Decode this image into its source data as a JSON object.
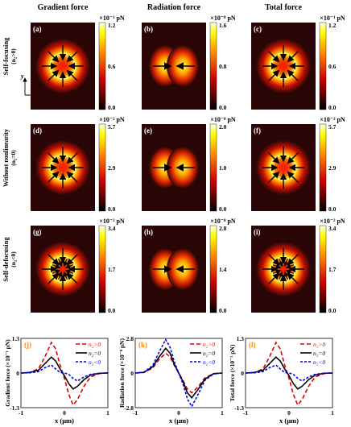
{
  "columns": [
    "Gradient force",
    "Radiation force",
    "Total force"
  ],
  "rows": [
    {
      "label": "Self-focusing",
      "sublabel": "(n₂>0)"
    },
    {
      "label": "Without nonlinearity",
      "sublabel": "(n₂=0)"
    },
    {
      "label": "Self-defocusing",
      "sublabel": "(n₂<0)"
    }
  ],
  "axis_glyphs": {
    "y": "y",
    "x": "x"
  },
  "colors": {
    "bg_dark": "#2a0606",
    "ring_red": "#d40000",
    "core_yellow": "#ffff33",
    "arrow": "#000000",
    "pos": "#e00000",
    "zero": "#000000",
    "neg": "#0000e0"
  },
  "chart_data": [
    {
      "type": "heatmap",
      "panel": "(a)",
      "unit_label": "×10⁻¹ pN",
      "ticks": [
        "1.2",
        "0.6",
        "0.0"
      ],
      "range": [
        0.0,
        1.2
      ],
      "arrows": "inward-radial"
    },
    {
      "type": "heatmap",
      "panel": "(b)",
      "unit_label": "×10⁻⁸ pN",
      "ticks": [
        "1.6",
        "0.8",
        "0.0"
      ],
      "range": [
        0.0,
        1.6
      ],
      "arrows": "inward-horizontal"
    },
    {
      "type": "heatmap",
      "panel": "(c)",
      "unit_label": "×10⁻¹ pN",
      "ticks": [
        "1.2",
        "0.6",
        "0.0"
      ],
      "range": [
        0.0,
        1.2
      ],
      "arrows": "inward-radial"
    },
    {
      "type": "heatmap",
      "panel": "(d)",
      "unit_label": "×10⁻² pN",
      "ticks": [
        "5.7",
        "2.9",
        "0.0"
      ],
      "range": [
        0.0,
        5.7
      ],
      "arrows": "inward-radial"
    },
    {
      "type": "heatmap",
      "panel": "(e)",
      "unit_label": "×10⁻⁸ pN",
      "ticks": [
        "2.0",
        "1.0",
        "0.0"
      ],
      "range": [
        0.0,
        2.0
      ],
      "arrows": "inward-horizontal"
    },
    {
      "type": "heatmap",
      "panel": "(f)",
      "unit_label": "×10⁻² pN",
      "ticks": [
        "5.7",
        "2.9",
        "0.0"
      ],
      "range": [
        0.0,
        5.7
      ],
      "arrows": "inward-radial"
    },
    {
      "type": "heatmap",
      "panel": "(g)",
      "unit_label": "×10⁻² pN",
      "ticks": [
        "3.4",
        "1.7",
        "0.0"
      ],
      "range": [
        0.0,
        3.4
      ],
      "arrows": "inward-radial-double"
    },
    {
      "type": "heatmap",
      "panel": "(h)",
      "unit_label": "×10⁻⁸ pN",
      "ticks": [
        "2.8",
        "1.4",
        "0.0"
      ],
      "range": [
        0.0,
        2.8
      ],
      "arrows": "inward-horizontal"
    },
    {
      "type": "heatmap",
      "panel": "(i)",
      "unit_label": "×10⁻² pN",
      "ticks": [
        "3.4",
        "1.7",
        "0.0"
      ],
      "range": [
        0.0,
        3.4
      ],
      "arrows": "inward-radial-double"
    },
    {
      "type": "line",
      "panel": "(j)",
      "ylabel": "Gradient force (×10⁻¹ pN)",
      "xlabel": "x (μm)",
      "xlim": [
        -1,
        1
      ],
      "ylim": [
        -1.3,
        1.3
      ],
      "xticks": [
        "-1",
        "0",
        "1"
      ],
      "yticks": [
        "1.3",
        "0",
        "-1.3"
      ],
      "x": [
        -1,
        -0.8,
        -0.6,
        -0.45,
        -0.3,
        -0.2,
        -0.1,
        0,
        0.1,
        0.2,
        0.3,
        0.45,
        0.6,
        0.8,
        1
      ],
      "series": [
        {
          "name": "n₂>0",
          "values": [
            0,
            0.02,
            0.15,
            0.6,
            1.15,
            0.9,
            0.3,
            -0.2,
            -0.8,
            -1.2,
            -1.0,
            -0.5,
            -0.15,
            -0.02,
            0
          ]
        },
        {
          "name": "n₂=0",
          "values": [
            0,
            0.02,
            0.1,
            0.35,
            0.6,
            0.45,
            0.15,
            -0.1,
            -0.4,
            -0.6,
            -0.5,
            -0.25,
            -0.08,
            -0.01,
            0
          ]
        },
        {
          "name": "n₂<0",
          "values": [
            0,
            0.01,
            0.05,
            0.2,
            0.3,
            0.15,
            0.02,
            0,
            -0.05,
            -0.2,
            -0.3,
            -0.15,
            -0.05,
            -0.01,
            0
          ]
        }
      ]
    },
    {
      "type": "line",
      "panel": "(k)",
      "ylabel": "Radiation force (×10⁻⁸ pN)",
      "xlabel": "x (μm)",
      "xlim": [
        -1,
        1
      ],
      "ylim": [
        -2.8,
        2.8
      ],
      "xticks": [
        "-1",
        "0",
        "1"
      ],
      "yticks": [
        "2.8",
        "0",
        "-2.8"
      ],
      "x": [
        -1,
        -0.8,
        -0.6,
        -0.45,
        -0.3,
        -0.2,
        -0.1,
        0,
        0.1,
        0.2,
        0.3,
        0.45,
        0.6,
        0.8,
        1
      ],
      "series": [
        {
          "name": "n₂>0",
          "values": [
            0,
            0.05,
            0.4,
            1.1,
            1.6,
            1.3,
            0.6,
            0,
            -0.6,
            -1.3,
            -1.6,
            -1.1,
            -0.4,
            -0.05,
            0
          ]
        },
        {
          "name": "n₂=0",
          "values": [
            0,
            0.05,
            0.5,
            1.3,
            2.0,
            1.6,
            0.7,
            0,
            -0.7,
            -1.6,
            -2.0,
            -1.3,
            -0.5,
            -0.05,
            0
          ]
        },
        {
          "name": "n₂<0",
          "values": [
            0,
            0.08,
            0.6,
            1.7,
            2.7,
            2.1,
            0.9,
            0,
            -0.9,
            -2.1,
            -2.7,
            -1.7,
            -0.6,
            -0.08,
            0
          ]
        }
      ]
    },
    {
      "type": "line",
      "panel": "(l)",
      "ylabel": "Total force (×10⁻¹ pN)",
      "xlabel": "x (μm)",
      "xlim": [
        -1,
        1
      ],
      "ylim": [
        -1.3,
        1.3
      ],
      "xticks": [
        "-1",
        "0",
        "1"
      ],
      "yticks": [
        "1.3",
        "0",
        "-1.3"
      ],
      "x": [
        -1,
        -0.8,
        -0.6,
        -0.45,
        -0.3,
        -0.2,
        -0.1,
        0,
        0.1,
        0.2,
        0.3,
        0.45,
        0.6,
        0.8,
        1
      ],
      "series": [
        {
          "name": "n₂>0",
          "values": [
            0,
            0.02,
            0.15,
            0.6,
            1.15,
            0.9,
            0.3,
            -0.2,
            -0.8,
            -1.2,
            -1.0,
            -0.5,
            -0.15,
            -0.02,
            0
          ]
        },
        {
          "name": "n₂=0",
          "values": [
            0,
            0.02,
            0.1,
            0.35,
            0.6,
            0.45,
            0.15,
            -0.1,
            -0.4,
            -0.6,
            -0.5,
            -0.25,
            -0.08,
            -0.01,
            0
          ]
        },
        {
          "name": "n₂<0",
          "values": [
            0,
            0.01,
            0.05,
            0.2,
            0.3,
            0.15,
            0.02,
            0,
            -0.05,
            -0.2,
            -0.3,
            -0.15,
            -0.05,
            -0.01,
            0
          ]
        }
      ]
    }
  ]
}
